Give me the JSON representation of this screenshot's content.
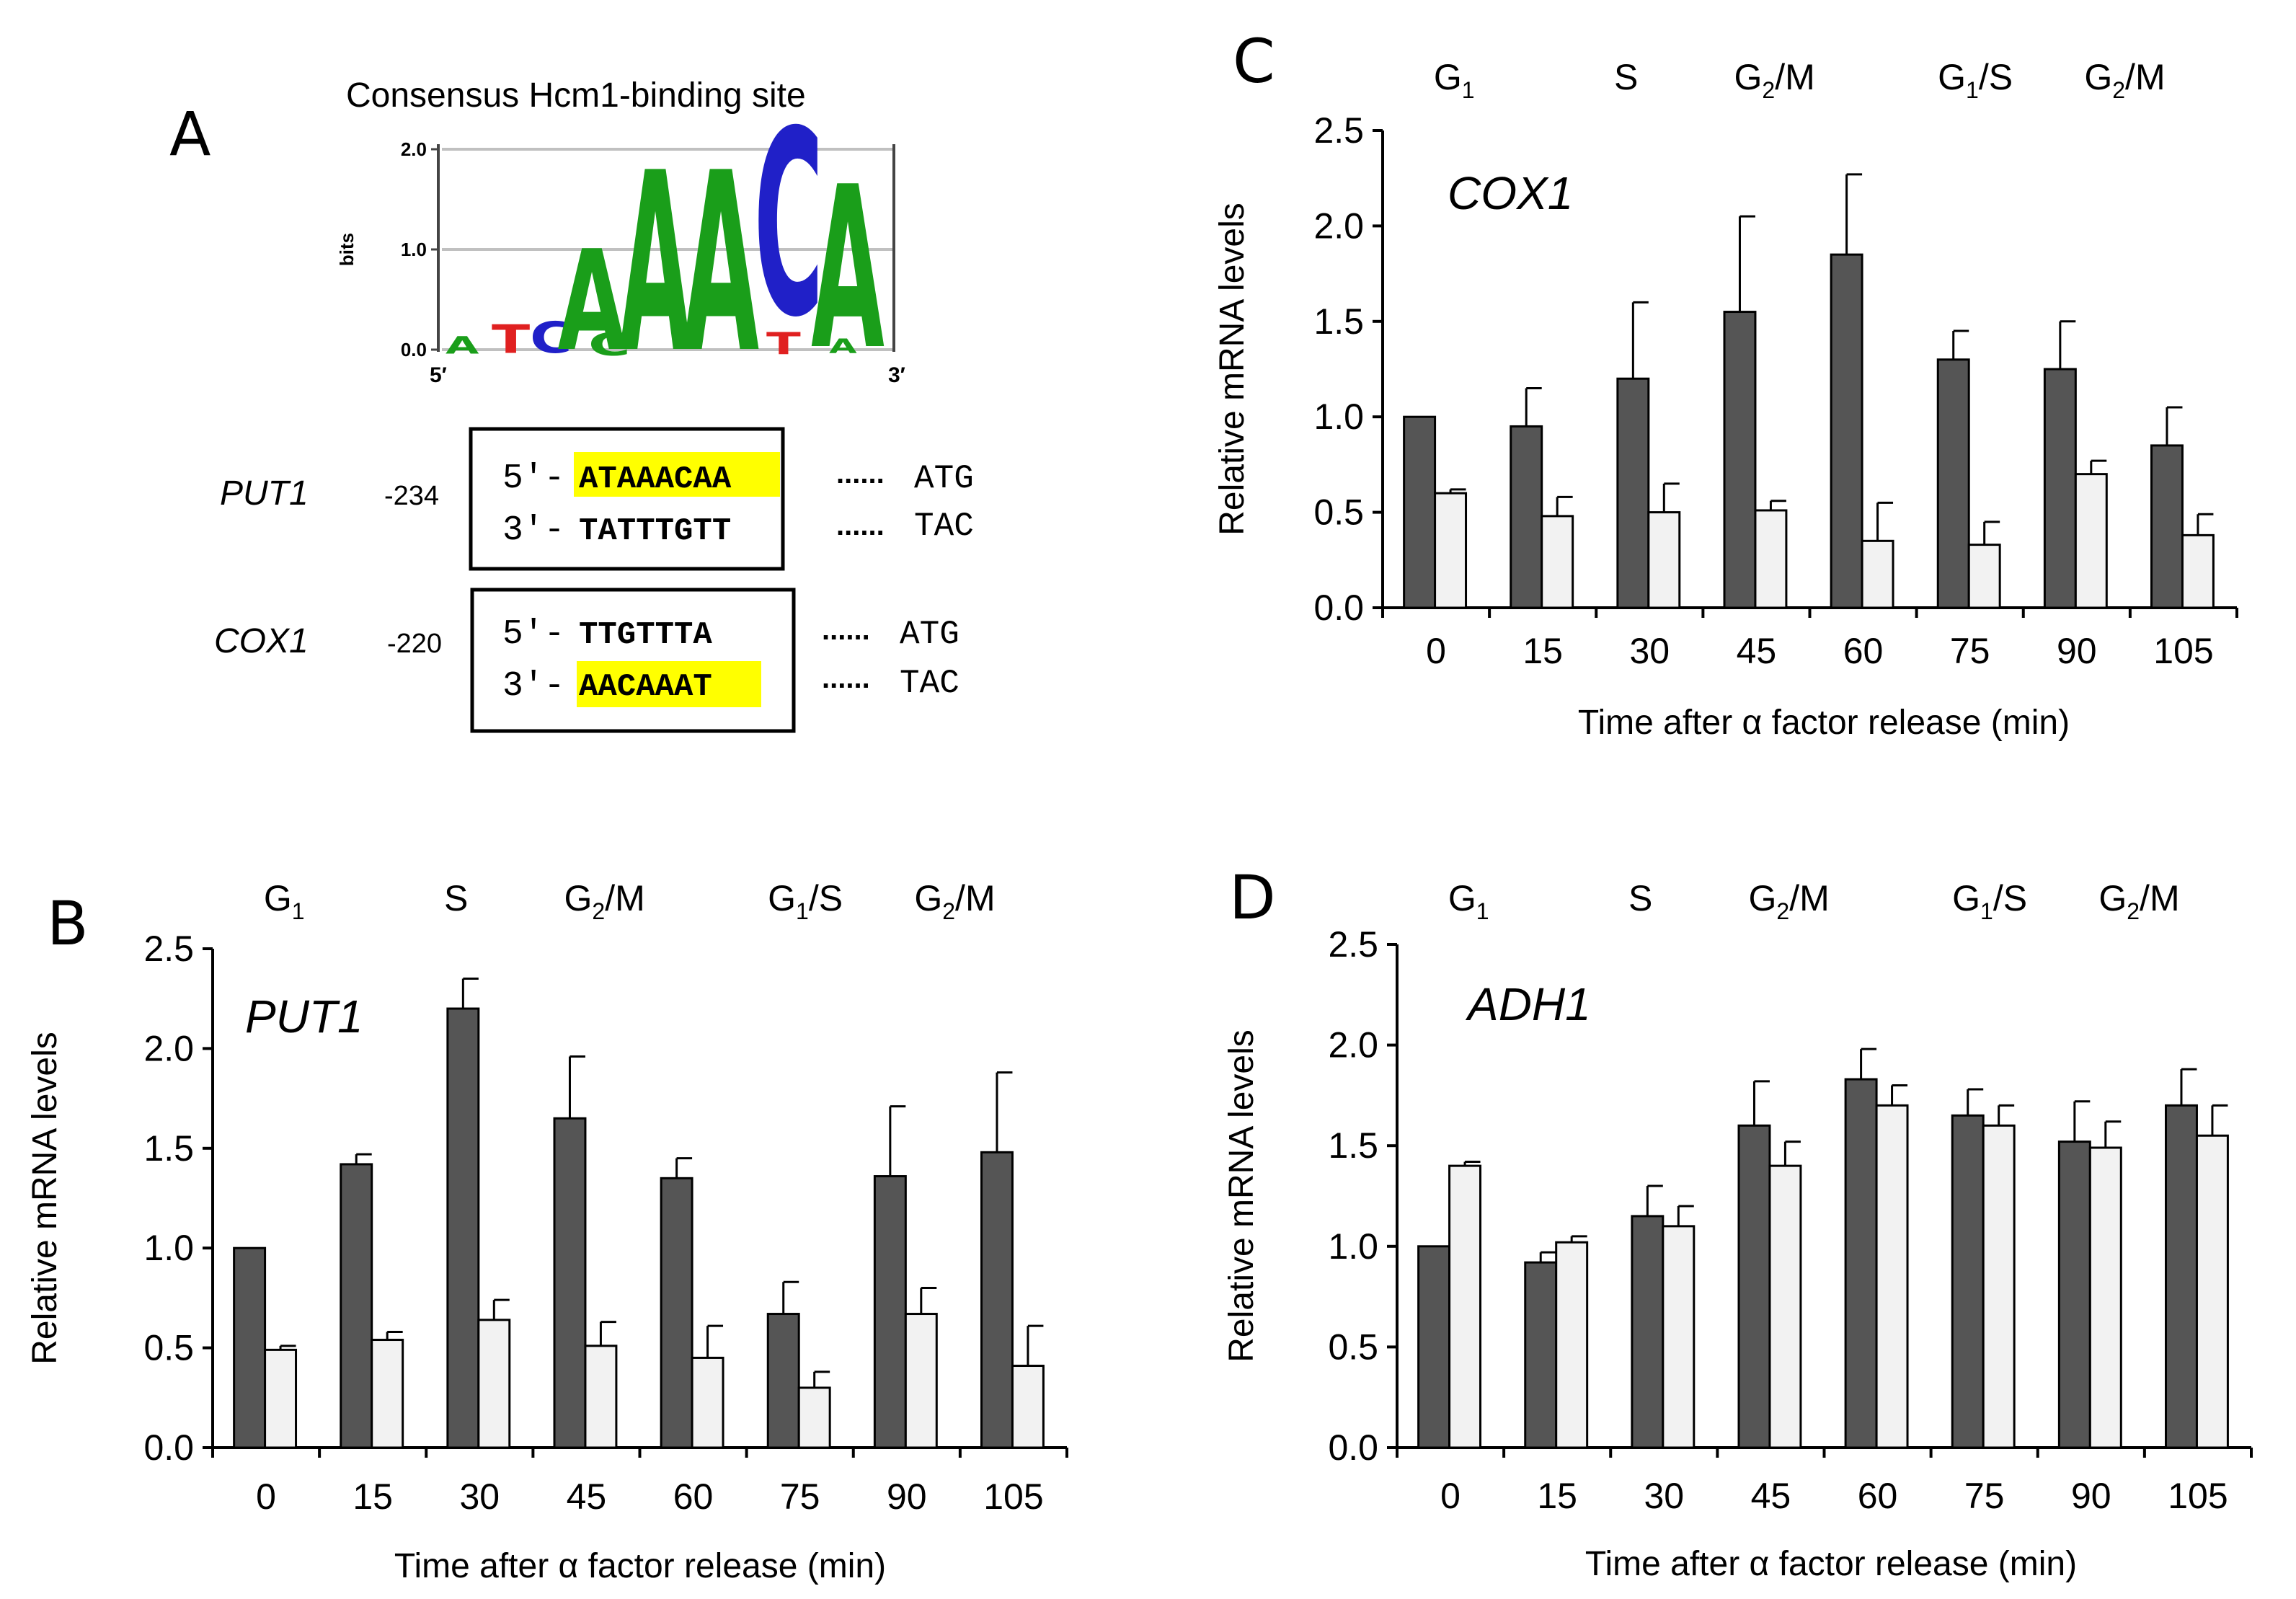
{
  "panel_a": {
    "letter": "A",
    "logo_title": "Consensus Hcm1-binding site",
    "logo_ylabel": "bits",
    "logo_yticks": [
      "2.0",
      "1.0",
      "0.0"
    ],
    "logo_x_start": "5′",
    "logo_x_end": "3′",
    "logo_main_letters": "AAACA",
    "put1": {
      "gene": "PUT1",
      "position": "-234",
      "strand1_prefix": "5′-",
      "strand1_seq": "ATAAACAA",
      "strand1_dots": "......",
      "strand1_codon": "ATG",
      "strand2_prefix": "3′-",
      "strand2_seq": "TATTTGTT",
      "strand2_dots": "......",
      "strand2_codon": "TAC"
    },
    "cox1": {
      "gene": "COX1",
      "position": "-220",
      "strand1_prefix": "5′-",
      "strand1_seq": "TTGTTTA",
      "strand1_dots": "......",
      "strand1_codon": "ATG",
      "strand2_prefix": "3′-",
      "strand2_seq": "AACAAAT",
      "strand2_dots": "......",
      "strand2_codon": "TAC"
    },
    "highlight_color": "#ffff00"
  },
  "colors": {
    "dark_bar": "#555555",
    "light_bar": "#f2f2f2",
    "axis": "#000000"
  },
  "chart_data": [
    {
      "panel": "B",
      "type": "bar",
      "gene_label": "PUT1",
      "title": "",
      "xlabel": "Time after α factor release (min)",
      "ylabel": "Relative mRNA  levels",
      "categories": [
        "0",
        "15",
        "30",
        "45",
        "60",
        "75",
        "90",
        "105"
      ],
      "yticks": [
        "0.0",
        "0.5",
        "1.0",
        "1.5",
        "2.0",
        "2.5"
      ],
      "ylim": [
        0,
        2.5
      ],
      "phases": [
        {
          "base": "G",
          "sub": "1",
          "tail": ""
        },
        {
          "base": "S",
          "sub": "",
          "tail": ""
        },
        {
          "base": "G",
          "sub": "2",
          "tail": "/M"
        },
        {
          "base": "G",
          "sub": "1",
          "tail": "/S"
        },
        {
          "base": "G",
          "sub": "2",
          "tail": "/M"
        }
      ],
      "series": [
        {
          "name": "dark",
          "values": [
            1.0,
            1.42,
            2.2,
            1.65,
            1.35,
            0.67,
            1.36,
            1.48
          ],
          "errors": [
            0,
            0.05,
            0.15,
            0.31,
            0.1,
            0.16,
            0.35,
            0.4
          ]
        },
        {
          "name": "light",
          "values": [
            0.49,
            0.54,
            0.64,
            0.51,
            0.45,
            0.3,
            0.67,
            0.41
          ],
          "errors": [
            0.02,
            0.04,
            0.1,
            0.12,
            0.16,
            0.08,
            0.13,
            0.2
          ]
        }
      ]
    },
    {
      "panel": "C",
      "type": "bar",
      "gene_label": "COX1",
      "title": "",
      "xlabel": "Time after α factor release (min)",
      "ylabel": "Relative mRNA  levels",
      "categories": [
        "0",
        "15",
        "30",
        "45",
        "60",
        "75",
        "90",
        "105"
      ],
      "yticks": [
        "0.0",
        "0.5",
        "1.0",
        "1.5",
        "2.0",
        "2.5"
      ],
      "ylim": [
        0,
        2.5
      ],
      "phases": [
        {
          "base": "G",
          "sub": "1",
          "tail": ""
        },
        {
          "base": "S",
          "sub": "",
          "tail": ""
        },
        {
          "base": "G",
          "sub": "2",
          "tail": "/M"
        },
        {
          "base": "G",
          "sub": "1",
          "tail": "/S"
        },
        {
          "base": "G",
          "sub": "2",
          "tail": "/M"
        }
      ],
      "series": [
        {
          "name": "dark",
          "values": [
            1.0,
            0.95,
            1.2,
            1.55,
            1.85,
            1.3,
            1.25,
            0.85
          ],
          "errors": [
            0,
            0.2,
            0.4,
            0.5,
            0.42,
            0.15,
            0.25,
            0.2
          ]
        },
        {
          "name": "light",
          "values": [
            0.6,
            0.48,
            0.5,
            0.51,
            0.35,
            0.33,
            0.7,
            0.38
          ],
          "errors": [
            0.02,
            0.1,
            0.15,
            0.05,
            0.2,
            0.12,
            0.07,
            0.11
          ]
        }
      ]
    },
    {
      "panel": "D",
      "type": "bar",
      "gene_label": "ADH1",
      "title": "",
      "xlabel": "Time after α factor release (min)",
      "ylabel": "Relative mRNA  levels",
      "categories": [
        "0",
        "15",
        "30",
        "45",
        "60",
        "75",
        "90",
        "105"
      ],
      "yticks": [
        "0.0",
        "0.5",
        "1.0",
        "1.5",
        "2.0",
        "2.5"
      ],
      "ylim": [
        0,
        2.5
      ],
      "phases": [
        {
          "base": "G",
          "sub": "1",
          "tail": ""
        },
        {
          "base": "S",
          "sub": "",
          "tail": ""
        },
        {
          "base": "G",
          "sub": "2",
          "tail": "/M"
        },
        {
          "base": "G",
          "sub": "1",
          "tail": "/S"
        },
        {
          "base": "G",
          "sub": "2",
          "tail": "/M"
        }
      ],
      "series": [
        {
          "name": "dark",
          "values": [
            1.0,
            0.92,
            1.15,
            1.6,
            1.83,
            1.65,
            1.52,
            1.7
          ],
          "errors": [
            0,
            0.05,
            0.15,
            0.22,
            0.15,
            0.13,
            0.2,
            0.18
          ]
        },
        {
          "name": "light",
          "values": [
            1.4,
            1.02,
            1.1,
            1.4,
            1.7,
            1.6,
            1.49,
            1.55
          ],
          "errors": [
            0.02,
            0.03,
            0.1,
            0.12,
            0.1,
            0.1,
            0.13,
            0.15
          ]
        }
      ]
    }
  ]
}
